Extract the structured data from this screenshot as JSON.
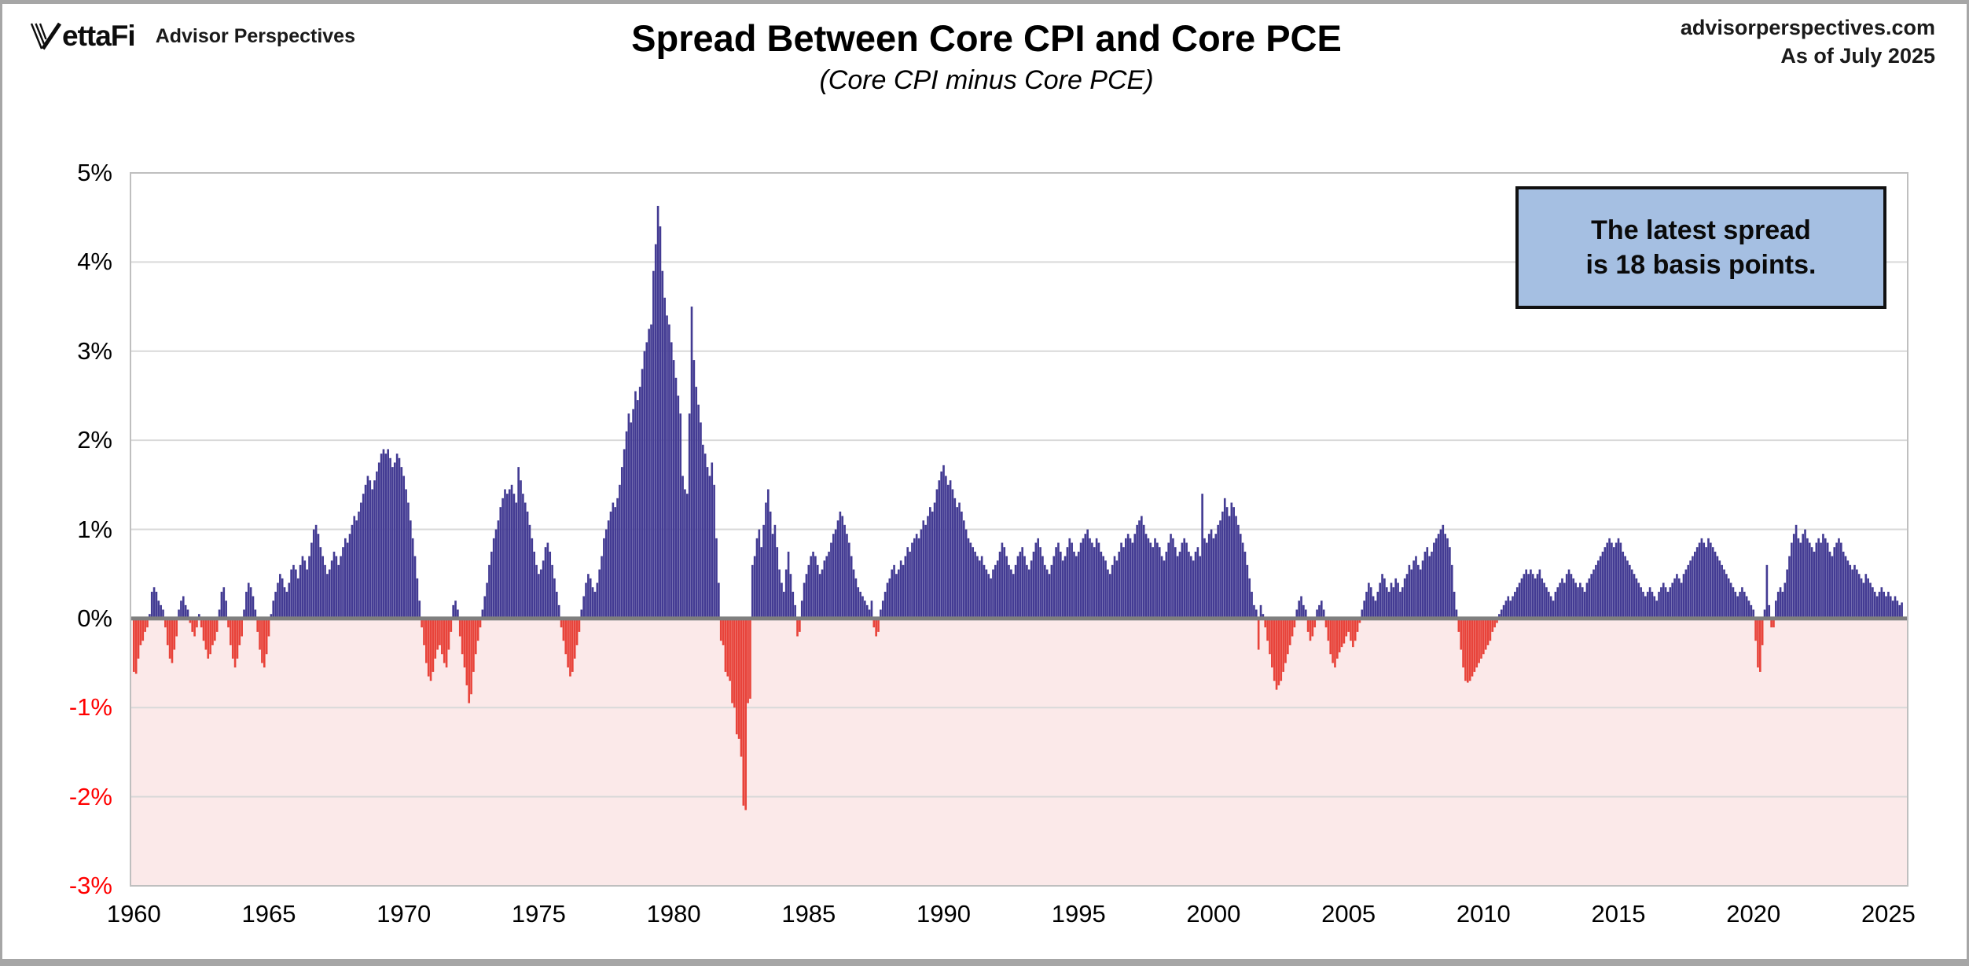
{
  "header": {
    "logo_primary": "ettaFi",
    "logo_secondary": "Advisor Perspectives",
    "title": "Spread Between Core CPI and Core PCE",
    "subtitle": "(Core CPI minus Core PCE)",
    "source": "advisorperspectives.com",
    "as_of": "As of July 2025"
  },
  "annotation": {
    "line1": "The latest spread",
    "line2": "is 18 basis points."
  },
  "chart_data": {
    "type": "bar",
    "title": "Spread Between Core CPI and Core PCE",
    "subtitle": "(Core CPI minus Core PCE)",
    "series_name": "Core CPI minus Core PCE",
    "frequency": "monthly",
    "x_start": "1960-01",
    "x_end": "2025-07",
    "ylim": [
      -3,
      5
    ],
    "grid": true,
    "latest_value_bps": 18,
    "yticks": [
      {
        "v": 5,
        "label": "5%",
        "color": "#000000"
      },
      {
        "v": 4,
        "label": "4%",
        "color": "#000000"
      },
      {
        "v": 3,
        "label": "3%",
        "color": "#000000"
      },
      {
        "v": 2,
        "label": "2%",
        "color": "#000000"
      },
      {
        "v": 1,
        "label": "1%",
        "color": "#000000"
      },
      {
        "v": 0,
        "label": "0%",
        "color": "#000000"
      },
      {
        "v": -1,
        "label": "-1%",
        "color": "#ff0000"
      },
      {
        "v": -2,
        "label": "-2%",
        "color": "#ff0000"
      },
      {
        "v": -3,
        "label": "-3%",
        "color": "#ff0000"
      }
    ],
    "xticks": [
      1960,
      1965,
      1970,
      1975,
      1980,
      1985,
      1990,
      1995,
      2000,
      2005,
      2010,
      2015,
      2020,
      2025
    ],
    "colors": {
      "positive_bar": "#433b93",
      "negative_bar": "#e8433a",
      "negative_zone_fill": "#fbe9e9",
      "gridline": "#d9d9d9",
      "zero_line": "#7f7f7f",
      "plot_border": "#bfbfbf",
      "callout_fill": "#a5bfe2",
      "callout_border": "#111111",
      "negative_tick_label": "#ff0000"
    },
    "values": [
      -0.6,
      -0.62,
      -0.45,
      -0.3,
      -0.25,
      -0.15,
      -0.1,
      0.05,
      0.3,
      0.35,
      0.3,
      0.2,
      0.15,
      0.1,
      -0.1,
      -0.3,
      -0.45,
      -0.5,
      -0.35,
      -0.2,
      0.1,
      0.2,
      0.25,
      0.15,
      0.1,
      -0.05,
      -0.15,
      -0.2,
      -0.1,
      0.05,
      -0.1,
      -0.25,
      -0.35,
      -0.45,
      -0.4,
      -0.3,
      -0.25,
      -0.15,
      0.1,
      0.3,
      0.35,
      0.2,
      -0.1,
      -0.3,
      -0.45,
      -0.55,
      -0.45,
      -0.3,
      -0.2,
      0.1,
      0.3,
      0.4,
      0.35,
      0.25,
      0.1,
      -0.15,
      -0.35,
      -0.5,
      -0.55,
      -0.4,
      -0.2,
      0.05,
      0.2,
      0.3,
      0.4,
      0.5,
      0.45,
      0.35,
      0.3,
      0.4,
      0.55,
      0.6,
      0.55,
      0.45,
      0.6,
      0.7,
      0.65,
      0.55,
      0.7,
      0.85,
      1.0,
      1.05,
      0.95,
      0.8,
      0.7,
      0.6,
      0.5,
      0.55,
      0.65,
      0.75,
      0.7,
      0.6,
      0.7,
      0.8,
      0.9,
      0.85,
      0.95,
      1.05,
      1.15,
      1.1,
      1.2,
      1.3,
      1.4,
      1.5,
      1.6,
      1.55,
      1.45,
      1.55,
      1.65,
      1.75,
      1.85,
      1.9,
      1.85,
      1.9,
      1.8,
      1.7,
      1.75,
      1.85,
      1.8,
      1.7,
      1.6,
      1.45,
      1.3,
      1.1,
      0.9,
      0.7,
      0.45,
      0.2,
      -0.1,
      -0.3,
      -0.5,
      -0.65,
      -0.7,
      -0.6,
      -0.45,
      -0.35,
      -0.3,
      -0.4,
      -0.5,
      -0.55,
      -0.35,
      -0.15,
      0.15,
      0.2,
      0.1,
      -0.2,
      -0.4,
      -0.55,
      -0.75,
      -0.95,
      -0.85,
      -0.6,
      -0.4,
      -0.25,
      -0.1,
      0.1,
      0.25,
      0.4,
      0.6,
      0.75,
      0.9,
      1.0,
      1.1,
      1.25,
      1.35,
      1.45,
      1.4,
      1.45,
      1.5,
      1.4,
      1.3,
      1.7,
      1.55,
      1.4,
      1.3,
      1.2,
      1.05,
      0.9,
      0.75,
      0.6,
      0.5,
      0.55,
      0.65,
      0.8,
      0.85,
      0.75,
      0.6,
      0.45,
      0.3,
      0.15,
      -0.1,
      -0.25,
      -0.4,
      -0.55,
      -0.65,
      -0.6,
      -0.45,
      -0.3,
      -0.15,
      0.1,
      0.25,
      0.4,
      0.5,
      0.45,
      0.35,
      0.3,
      0.4,
      0.55,
      0.7,
      0.9,
      1.0,
      1.1,
      1.2,
      1.3,
      1.25,
      1.35,
      1.5,
      1.7,
      1.9,
      2.1,
      2.3,
      2.2,
      2.35,
      2.55,
      2.45,
      2.6,
      2.8,
      3.0,
      3.1,
      3.25,
      3.3,
      3.9,
      4.2,
      4.63,
      4.4,
      3.9,
      3.6,
      3.4,
      3.3,
      3.1,
      2.9,
      2.7,
      2.5,
      2.3,
      1.6,
      1.45,
      1.4,
      2.3,
      3.5,
      2.9,
      2.6,
      2.4,
      2.2,
      1.95,
      1.85,
      1.7,
      1.6,
      1.75,
      1.5,
      0.9,
      0.4,
      -0.25,
      -0.3,
      -0.6,
      -0.65,
      -0.7,
      -0.95,
      -1.0,
      -1.3,
      -1.35,
      -1.55,
      -2.1,
      -2.15,
      -0.95,
      -0.9,
      0.6,
      0.7,
      0.9,
      1.0,
      0.8,
      1.05,
      1.3,
      1.45,
      1.2,
      0.95,
      1.05,
      0.8,
      0.55,
      0.4,
      0.3,
      0.55,
      0.75,
      0.5,
      0.3,
      0.15,
      -0.2,
      -0.15,
      0.2,
      0.4,
      0.5,
      0.6,
      0.7,
      0.75,
      0.7,
      0.6,
      0.5,
      0.55,
      0.65,
      0.7,
      0.75,
      0.85,
      0.95,
      1.0,
      1.1,
      1.2,
      1.15,
      1.05,
      0.95,
      0.85,
      0.7,
      0.55,
      0.45,
      0.35,
      0.3,
      0.25,
      0.2,
      0.15,
      0.1,
      0.2,
      -0.1,
      -0.2,
      -0.15,
      0.1,
      0.2,
      0.3,
      0.4,
      0.45,
      0.55,
      0.6,
      0.5,
      0.55,
      0.65,
      0.6,
      0.7,
      0.8,
      0.75,
      0.85,
      0.9,
      0.95,
      0.9,
      1.0,
      1.1,
      1.05,
      1.15,
      1.25,
      1.2,
      1.3,
      1.45,
      1.55,
      1.65,
      1.72,
      1.6,
      1.5,
      1.55,
      1.45,
      1.35,
      1.25,
      1.3,
      1.2,
      1.1,
      1.0,
      0.9,
      0.85,
      0.8,
      0.75,
      0.7,
      0.65,
      0.7,
      0.6,
      0.55,
      0.5,
      0.45,
      0.55,
      0.6,
      0.65,
      0.75,
      0.85,
      0.8,
      0.7,
      0.6,
      0.55,
      0.5,
      0.6,
      0.7,
      0.75,
      0.8,
      0.7,
      0.6,
      0.55,
      0.65,
      0.75,
      0.85,
      0.9,
      0.8,
      0.7,
      0.6,
      0.55,
      0.5,
      0.6,
      0.7,
      0.8,
      0.85,
      0.75,
      0.65,
      0.7,
      0.8,
      0.9,
      0.85,
      0.75,
      0.7,
      0.75,
      0.85,
      0.9,
      0.95,
      1.0,
      0.9,
      0.85,
      0.8,
      0.9,
      0.85,
      0.75,
      0.7,
      0.65,
      0.55,
      0.5,
      0.6,
      0.7,
      0.65,
      0.75,
      0.85,
      0.8,
      0.9,
      0.95,
      0.9,
      0.85,
      0.95,
      1.05,
      1.1,
      1.15,
      1.05,
      0.95,
      0.9,
      0.85,
      0.8,
      0.9,
      0.85,
      0.8,
      0.7,
      0.65,
      0.75,
      0.85,
      0.95,
      0.9,
      0.8,
      0.7,
      0.75,
      0.85,
      0.9,
      0.85,
      0.75,
      0.7,
      0.65,
      0.75,
      0.8,
      0.7,
      1.4,
      0.9,
      0.85,
      0.95,
      1.0,
      0.9,
      0.95,
      1.05,
      1.1,
      1.2,
      1.35,
      1.25,
      1.15,
      1.3,
      1.25,
      1.15,
      1.05,
      0.95,
      0.85,
      0.75,
      0.6,
      0.45,
      0.3,
      0.15,
      0.1,
      -0.35,
      0.15,
      0.05,
      -0.1,
      -0.25,
      -0.4,
      -0.55,
      -0.7,
      -0.8,
      -0.75,
      -0.7,
      -0.6,
      -0.5,
      -0.4,
      -0.3,
      -0.2,
      -0.1,
      0.1,
      0.2,
      0.25,
      0.15,
      0.1,
      -0.15,
      -0.25,
      -0.2,
      -0.1,
      0.1,
      0.15,
      0.2,
      0.1,
      -0.1,
      -0.25,
      -0.4,
      -0.5,
      -0.55,
      -0.45,
      -0.38,
      -0.32,
      -0.28,
      -0.2,
      -0.15,
      -0.25,
      -0.32,
      -0.25,
      -0.15,
      -0.05,
      0.1,
      0.2,
      0.3,
      0.4,
      0.35,
      0.25,
      0.2,
      0.3,
      0.4,
      0.5,
      0.45,
      0.35,
      0.3,
      0.4,
      0.35,
      0.45,
      0.4,
      0.3,
      0.35,
      0.45,
      0.5,
      0.6,
      0.55,
      0.65,
      0.7,
      0.6,
      0.55,
      0.65,
      0.75,
      0.8,
      0.7,
      0.75,
      0.85,
      0.9,
      0.95,
      1.0,
      1.05,
      0.95,
      0.9,
      0.8,
      0.6,
      0.3,
      0.1,
      -0.15,
      -0.35,
      -0.55,
      -0.7,
      -0.72,
      -0.7,
      -0.65,
      -0.6,
      -0.55,
      -0.5,
      -0.45,
      -0.4,
      -0.35,
      -0.3,
      -0.25,
      -0.15,
      -0.1,
      -0.05,
      0.05,
      0.1,
      0.15,
      0.2,
      0.25,
      0.2,
      0.25,
      0.3,
      0.35,
      0.4,
      0.45,
      0.5,
      0.55,
      0.5,
      0.55,
      0.5,
      0.45,
      0.5,
      0.55,
      0.45,
      0.4,
      0.35,
      0.3,
      0.25,
      0.2,
      0.3,
      0.35,
      0.4,
      0.45,
      0.4,
      0.5,
      0.55,
      0.5,
      0.45,
      0.4,
      0.35,
      0.4,
      0.35,
      0.3,
      0.4,
      0.45,
      0.5,
      0.55,
      0.6,
      0.65,
      0.7,
      0.75,
      0.8,
      0.85,
      0.9,
      0.85,
      0.8,
      0.85,
      0.9,
      0.85,
      0.75,
      0.7,
      0.65,
      0.6,
      0.55,
      0.5,
      0.45,
      0.4,
      0.35,
      0.3,
      0.25,
      0.3,
      0.35,
      0.3,
      0.25,
      0.2,
      0.3,
      0.35,
      0.4,
      0.35,
      0.3,
      0.35,
      0.4,
      0.45,
      0.5,
      0.45,
      0.4,
      0.5,
      0.55,
      0.6,
      0.65,
      0.7,
      0.75,
      0.8,
      0.85,
      0.9,
      0.85,
      0.8,
      0.9,
      0.85,
      0.8,
      0.75,
      0.7,
      0.65,
      0.6,
      0.55,
      0.5,
      0.45,
      0.4,
      0.35,
      0.3,
      0.25,
      0.3,
      0.35,
      0.3,
      0.25,
      0.2,
      0.15,
      0.1,
      -0.25,
      -0.55,
      -0.6,
      -0.3,
      0.1,
      0.6,
      0.15,
      -0.1,
      -0.1,
      0.2,
      0.3,
      0.35,
      0.3,
      0.4,
      0.55,
      0.7,
      0.85,
      0.95,
      1.05,
      0.9,
      0.85,
      0.95,
      1.0,
      0.9,
      0.85,
      0.8,
      0.75,
      0.85,
      0.9,
      0.85,
      0.95,
      0.9,
      0.85,
      0.75,
      0.7,
      0.8,
      0.85,
      0.9,
      0.85,
      0.75,
      0.7,
      0.65,
      0.6,
      0.55,
      0.6,
      0.55,
      0.5,
      0.45,
      0.4,
      0.5,
      0.45,
      0.4,
      0.35,
      0.3,
      0.25,
      0.3,
      0.35,
      0.3,
      0.25,
      0.3,
      0.25,
      0.2,
      0.25,
      0.2,
      0.15,
      0.18
    ]
  }
}
